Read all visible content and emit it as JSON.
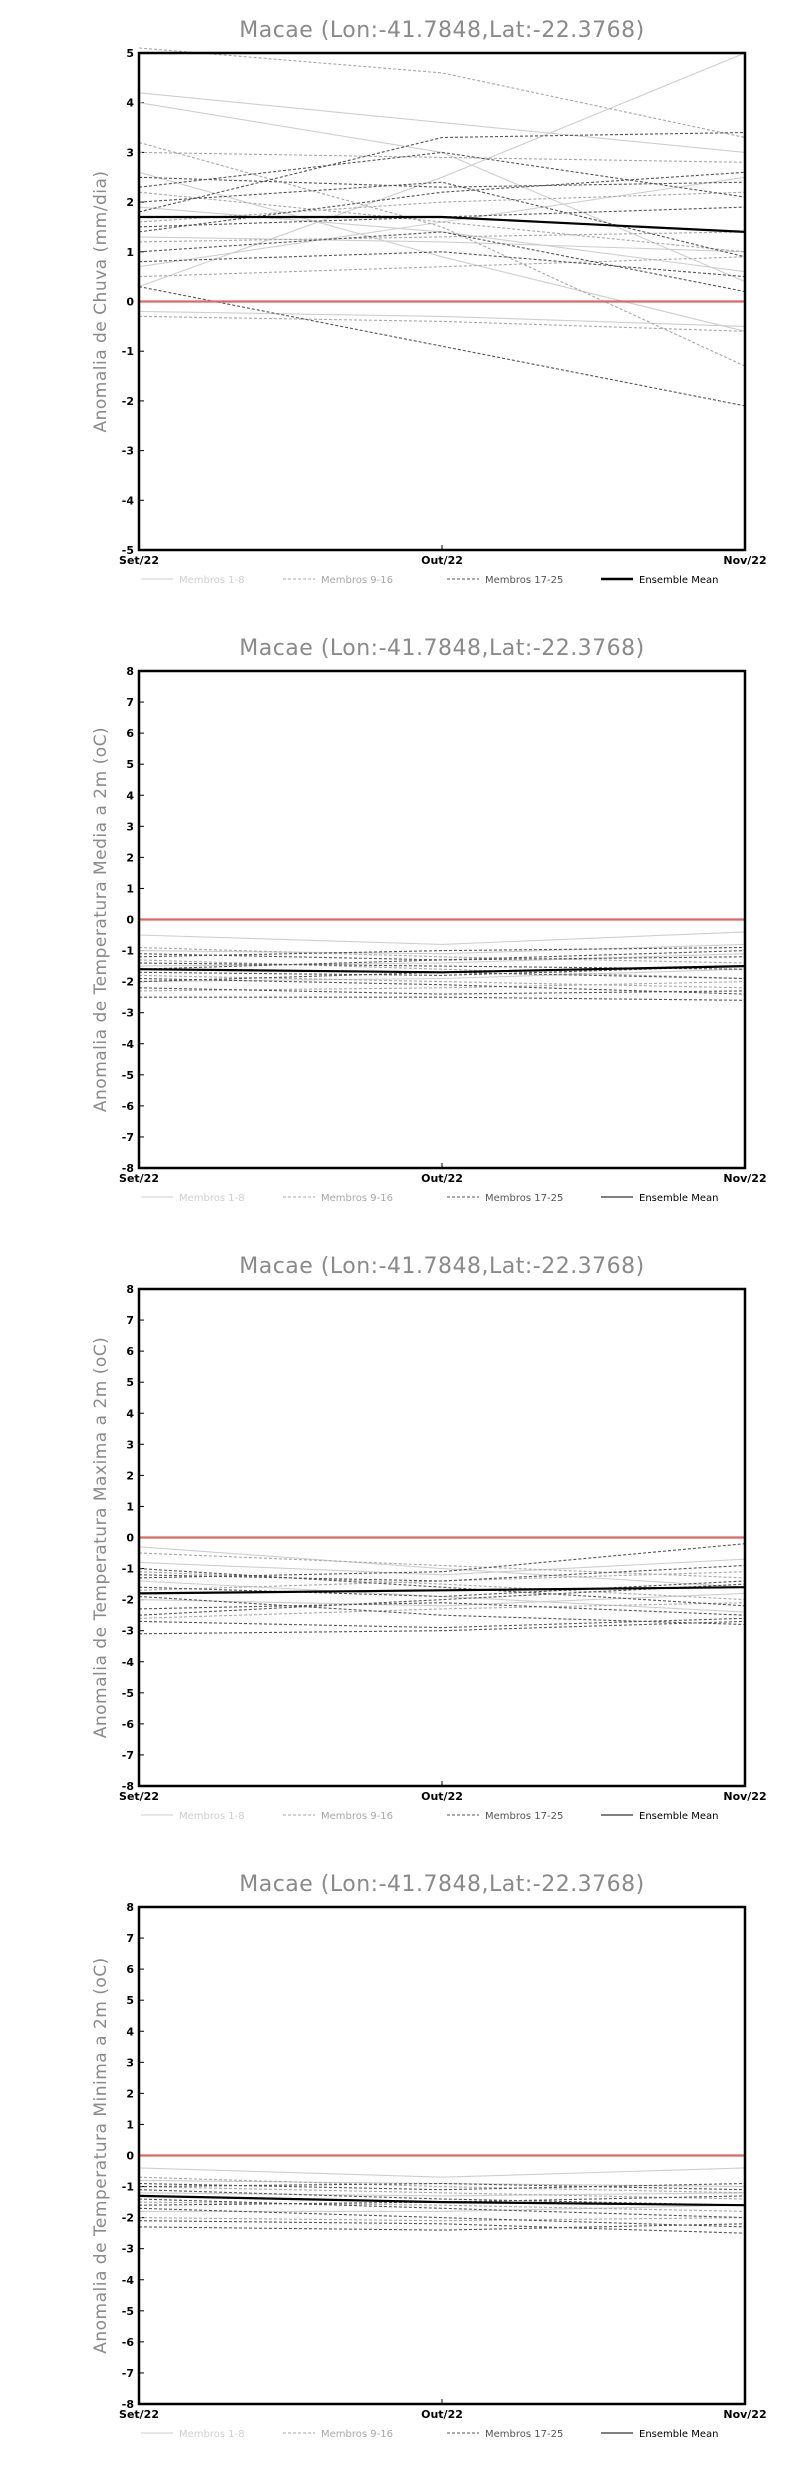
{
  "chart_data": [
    {
      "type": "line",
      "title": "Macae (Lon:-41.7848,Lat:-22.3768)",
      "ylabel": "Anomalia de Chuva (mm/dia)",
      "xlabel": "",
      "categories": [
        "Set/22",
        "Out/22",
        "Nov/22"
      ],
      "ylim": [
        -5,
        5
      ],
      "yticks": [
        -5,
        -4,
        -3,
        -2,
        -1,
        0,
        1,
        2,
        3,
        4,
        5
      ],
      "grid": false,
      "legend_position": "bottom",
      "reference_line": {
        "y": 0,
        "color": "#e06666"
      },
      "legend": [
        {
          "label": "Membros 1-8",
          "color": "#cfcfcf",
          "style": "solid"
        },
        {
          "label": "Membros 9-16",
          "color": "#a8a8a8",
          "style": "dashed"
        },
        {
          "label": "Membros 17-25",
          "color": "#555555",
          "style": "dashed"
        },
        {
          "label": "Ensemble Mean",
          "color": "#000000",
          "style": "solid",
          "bold": true
        }
      ],
      "series": [
        {
          "group": 1,
          "values": [
            4.2,
            3.6,
            3.0
          ]
        },
        {
          "group": 1,
          "values": [
            4.0,
            3.0,
            0.4
          ]
        },
        {
          "group": 1,
          "values": [
            0.3,
            2.5,
            5.0
          ]
        },
        {
          "group": 1,
          "values": [
            1.3,
            1.2,
            1.0
          ]
        },
        {
          "group": 1,
          "values": [
            0.7,
            1.6,
            2.5
          ]
        },
        {
          "group": 1,
          "values": [
            -0.2,
            -0.3,
            -0.5
          ]
        },
        {
          "group": 1,
          "values": [
            1.9,
            1.4,
            0.6
          ]
        },
        {
          "group": 1,
          "values": [
            2.6,
            0.9,
            -0.6
          ]
        },
        {
          "group": 2,
          "values": [
            5.1,
            4.6,
            3.3
          ]
        },
        {
          "group": 2,
          "values": [
            3.0,
            2.9,
            2.8
          ]
        },
        {
          "group": 2,
          "values": [
            1.2,
            1.3,
            1.4
          ]
        },
        {
          "group": 2,
          "values": [
            0.5,
            0.7,
            0.9
          ]
        },
        {
          "group": 2,
          "values": [
            -0.3,
            -0.4,
            -0.6
          ]
        },
        {
          "group": 2,
          "values": [
            2.2,
            1.6,
            1.0
          ]
        },
        {
          "group": 2,
          "values": [
            1.6,
            2.0,
            2.2
          ]
        },
        {
          "group": 2,
          "values": [
            3.2,
            1.5,
            -1.3
          ]
        },
        {
          "group": 3,
          "values": [
            1.8,
            3.3,
            3.4
          ]
        },
        {
          "group": 3,
          "values": [
            2.3,
            3.0,
            2.1
          ]
        },
        {
          "group": 3,
          "values": [
            0.3,
            -0.9,
            -2.1
          ]
        },
        {
          "group": 3,
          "values": [
            1.0,
            1.4,
            0.2
          ]
        },
        {
          "group": 3,
          "values": [
            1.5,
            1.7,
            1.9
          ]
        },
        {
          "group": 3,
          "values": [
            2.0,
            2.4,
            0.9
          ]
        },
        {
          "group": 3,
          "values": [
            2.5,
            2.3,
            2.4
          ]
        },
        {
          "group": 3,
          "values": [
            0.8,
            1.0,
            0.5
          ]
        },
        {
          "group": 3,
          "values": [
            1.4,
            2.2,
            2.6
          ]
        },
        {
          "group": 4,
          "values": [
            1.7,
            1.7,
            1.4
          ]
        }
      ]
    },
    {
      "type": "line",
      "title": "Macae (Lon:-41.7848,Lat:-22.3768)",
      "ylabel": "Anomalia de Temperatura Media a 2m (oC)",
      "xlabel": "",
      "categories": [
        "Set/22",
        "Out/22",
        "Nov/22"
      ],
      "ylim": [
        -8,
        8
      ],
      "yticks": [
        -8,
        -7,
        -6,
        -5,
        -4,
        -3,
        -2,
        -1,
        0,
        1,
        2,
        3,
        4,
        5,
        6,
        7,
        8
      ],
      "grid": false,
      "legend_position": "bottom",
      "reference_line": {
        "y": 0,
        "color": "#e06666"
      },
      "legend": [
        {
          "label": "Membros 1-8",
          "color": "#cfcfcf",
          "style": "solid"
        },
        {
          "label": "Membros 9-16",
          "color": "#a8a8a8",
          "style": "dashed"
        },
        {
          "label": "Membros 17-25",
          "color": "#555555",
          "style": "dashed"
        },
        {
          "label": "Ensemble Mean",
          "color": "#000000",
          "style": "solid"
        }
      ],
      "series": [
        {
          "group": 1,
          "values": [
            -0.5,
            -0.8,
            -0.4
          ]
        },
        {
          "group": 1,
          "values": [
            -1.0,
            -1.1,
            -0.8
          ]
        },
        {
          "group": 1,
          "values": [
            -1.5,
            -1.4,
            -1.1
          ]
        },
        {
          "group": 1,
          "values": [
            -2.0,
            -1.9,
            -1.6
          ]
        },
        {
          "group": 2,
          "values": [
            -0.9,
            -1.2,
            -1.4
          ]
        },
        {
          "group": 2,
          "values": [
            -1.3,
            -1.6,
            -1.9
          ]
        },
        {
          "group": 2,
          "values": [
            -1.8,
            -2.0,
            -2.2
          ]
        },
        {
          "group": 2,
          "values": [
            -2.3,
            -2.2,
            -2.0
          ]
        },
        {
          "group": 3,
          "values": [
            -1.1,
            -1.3,
            -1.0
          ]
        },
        {
          "group": 3,
          "values": [
            -1.4,
            -1.5,
            -1.6
          ]
        },
        {
          "group": 3,
          "values": [
            -1.7,
            -1.8,
            -1.5
          ]
        },
        {
          "group": 3,
          "values": [
            -1.9,
            -2.1,
            -2.4
          ]
        },
        {
          "group": 3,
          "values": [
            -2.2,
            -2.4,
            -2.3
          ]
        },
        {
          "group": 3,
          "values": [
            -2.5,
            -2.5,
            -2.6
          ]
        },
        {
          "group": 3,
          "values": [
            -1.2,
            -1.0,
            -0.9
          ]
        },
        {
          "group": 3,
          "values": [
            -1.6,
            -1.3,
            -1.2
          ]
        },
        {
          "group": 3,
          "values": [
            -2.0,
            -1.7,
            -1.9
          ]
        },
        {
          "group": 4,
          "values": [
            -1.6,
            -1.7,
            -1.5
          ]
        }
      ]
    },
    {
      "type": "line",
      "title": "Macae (Lon:-41.7848,Lat:-22.3768)",
      "ylabel": "Anomalia de Temperatura Maxima a 2m (oC)",
      "xlabel": "",
      "categories": [
        "Set/22",
        "Out/22",
        "Nov/22"
      ],
      "ylim": [
        -8,
        8
      ],
      "yticks": [
        -8,
        -7,
        -6,
        -5,
        -4,
        -3,
        -2,
        -1,
        0,
        1,
        2,
        3,
        4,
        5,
        6,
        7,
        8
      ],
      "grid": false,
      "legend_position": "bottom",
      "reference_line": {
        "y": 0,
        "color": "#e06666"
      },
      "legend": [
        {
          "label": "Membros 1-8",
          "color": "#cfcfcf",
          "style": "solid"
        },
        {
          "label": "Membros 9-16",
          "color": "#a8a8a8",
          "style": "dashed"
        },
        {
          "label": "Membros 17-25",
          "color": "#555555",
          "style": "dashed"
        },
        {
          "label": "Ensemble Mean",
          "color": "#000000",
          "style": "solid"
        }
      ],
      "series": [
        {
          "group": 1,
          "values": [
            -0.3,
            -1.0,
            -1.6
          ]
        },
        {
          "group": 1,
          "values": [
            -0.8,
            -1.2,
            -0.7
          ]
        },
        {
          "group": 1,
          "values": [
            -1.4,
            -1.9,
            -2.4
          ]
        },
        {
          "group": 1,
          "values": [
            -2.0,
            -2.2,
            -1.8
          ]
        },
        {
          "group": 2,
          "values": [
            -0.5,
            -0.9,
            -1.3
          ]
        },
        {
          "group": 2,
          "values": [
            -1.1,
            -1.5,
            -2.0
          ]
        },
        {
          "group": 2,
          "values": [
            -1.7,
            -1.4,
            -1.1
          ]
        },
        {
          "group": 2,
          "values": [
            -2.6,
            -2.3,
            -2.1
          ]
        },
        {
          "group": 3,
          "values": [
            -1.0,
            -1.6,
            -2.2
          ]
        },
        {
          "group": 3,
          "values": [
            -1.3,
            -1.1,
            -0.2
          ]
        },
        {
          "group": 3,
          "values": [
            -1.6,
            -1.9,
            -1.4
          ]
        },
        {
          "group": 3,
          "values": [
            -1.9,
            -2.5,
            -2.8
          ]
        },
        {
          "group": 3,
          "values": [
            -2.3,
            -2.1,
            -2.5
          ]
        },
        {
          "group": 3,
          "values": [
            -2.7,
            -2.9,
            -2.6
          ]
        },
        {
          "group": 3,
          "values": [
            -3.1,
            -3.0,
            -2.7
          ]
        },
        {
          "group": 3,
          "values": [
            -2.5,
            -2.0,
            -1.5
          ]
        },
        {
          "group": 3,
          "values": [
            -1.2,
            -1.4,
            -0.9
          ]
        },
        {
          "group": 4,
          "values": [
            -1.8,
            -1.7,
            -1.6
          ]
        }
      ]
    },
    {
      "type": "line",
      "title": "Macae (Lon:-41.7848,Lat:-22.3768)",
      "ylabel": "Anomalia de Temperatura Minima a 2m (oC)",
      "xlabel": "",
      "categories": [
        "Set/22",
        "Out/22",
        "Nov/22"
      ],
      "ylim": [
        -8,
        8
      ],
      "yticks": [
        -8,
        -7,
        -6,
        -5,
        -4,
        -3,
        -2,
        -1,
        0,
        1,
        2,
        3,
        4,
        5,
        6,
        7,
        8
      ],
      "grid": false,
      "legend_position": "bottom",
      "reference_line": {
        "y": 0,
        "color": "#e06666"
      },
      "legend": [
        {
          "label": "Membros 1-8",
          "color": "#cfcfcf",
          "style": "solid"
        },
        {
          "label": "Membros 9-16",
          "color": "#a8a8a8",
          "style": "dashed"
        },
        {
          "label": "Membros 17-25",
          "color": "#555555",
          "style": "dashed"
        },
        {
          "label": "Ensemble Mean",
          "color": "#000000",
          "style": "solid"
        }
      ],
      "series": [
        {
          "group": 1,
          "values": [
            -0.4,
            -0.7,
            -0.4
          ]
        },
        {
          "group": 1,
          "values": [
            -0.8,
            -0.9,
            -1.0
          ]
        },
        {
          "group": 1,
          "values": [
            -1.2,
            -1.3,
            -1.2
          ]
        },
        {
          "group": 1,
          "values": [
            -1.8,
            -1.8,
            -1.6
          ]
        },
        {
          "group": 2,
          "values": [
            -0.7,
            -1.0,
            -1.2
          ]
        },
        {
          "group": 2,
          "values": [
            -1.0,
            -1.2,
            -1.4
          ]
        },
        {
          "group": 2,
          "values": [
            -1.5,
            -1.6,
            -1.8
          ]
        },
        {
          "group": 2,
          "values": [
            -2.0,
            -2.1,
            -2.0
          ]
        },
        {
          "group": 3,
          "values": [
            -0.9,
            -1.1,
            -0.9
          ]
        },
        {
          "group": 3,
          "values": [
            -1.1,
            -1.4,
            -1.6
          ]
        },
        {
          "group": 3,
          "values": [
            -1.4,
            -1.7,
            -2.0
          ]
        },
        {
          "group": 3,
          "values": [
            -1.7,
            -2.0,
            -2.3
          ]
        },
        {
          "group": 3,
          "values": [
            -2.1,
            -2.2,
            -2.5
          ]
        },
        {
          "group": 3,
          "values": [
            -2.3,
            -2.4,
            -2.2
          ]
        },
        {
          "group": 3,
          "values": [
            -1.0,
            -0.9,
            -1.1
          ]
        },
        {
          "group": 3,
          "values": [
            -1.6,
            -1.5,
            -1.3
          ]
        },
        {
          "group": 4,
          "values": [
            -1.3,
            -1.5,
            -1.6
          ]
        }
      ]
    }
  ]
}
